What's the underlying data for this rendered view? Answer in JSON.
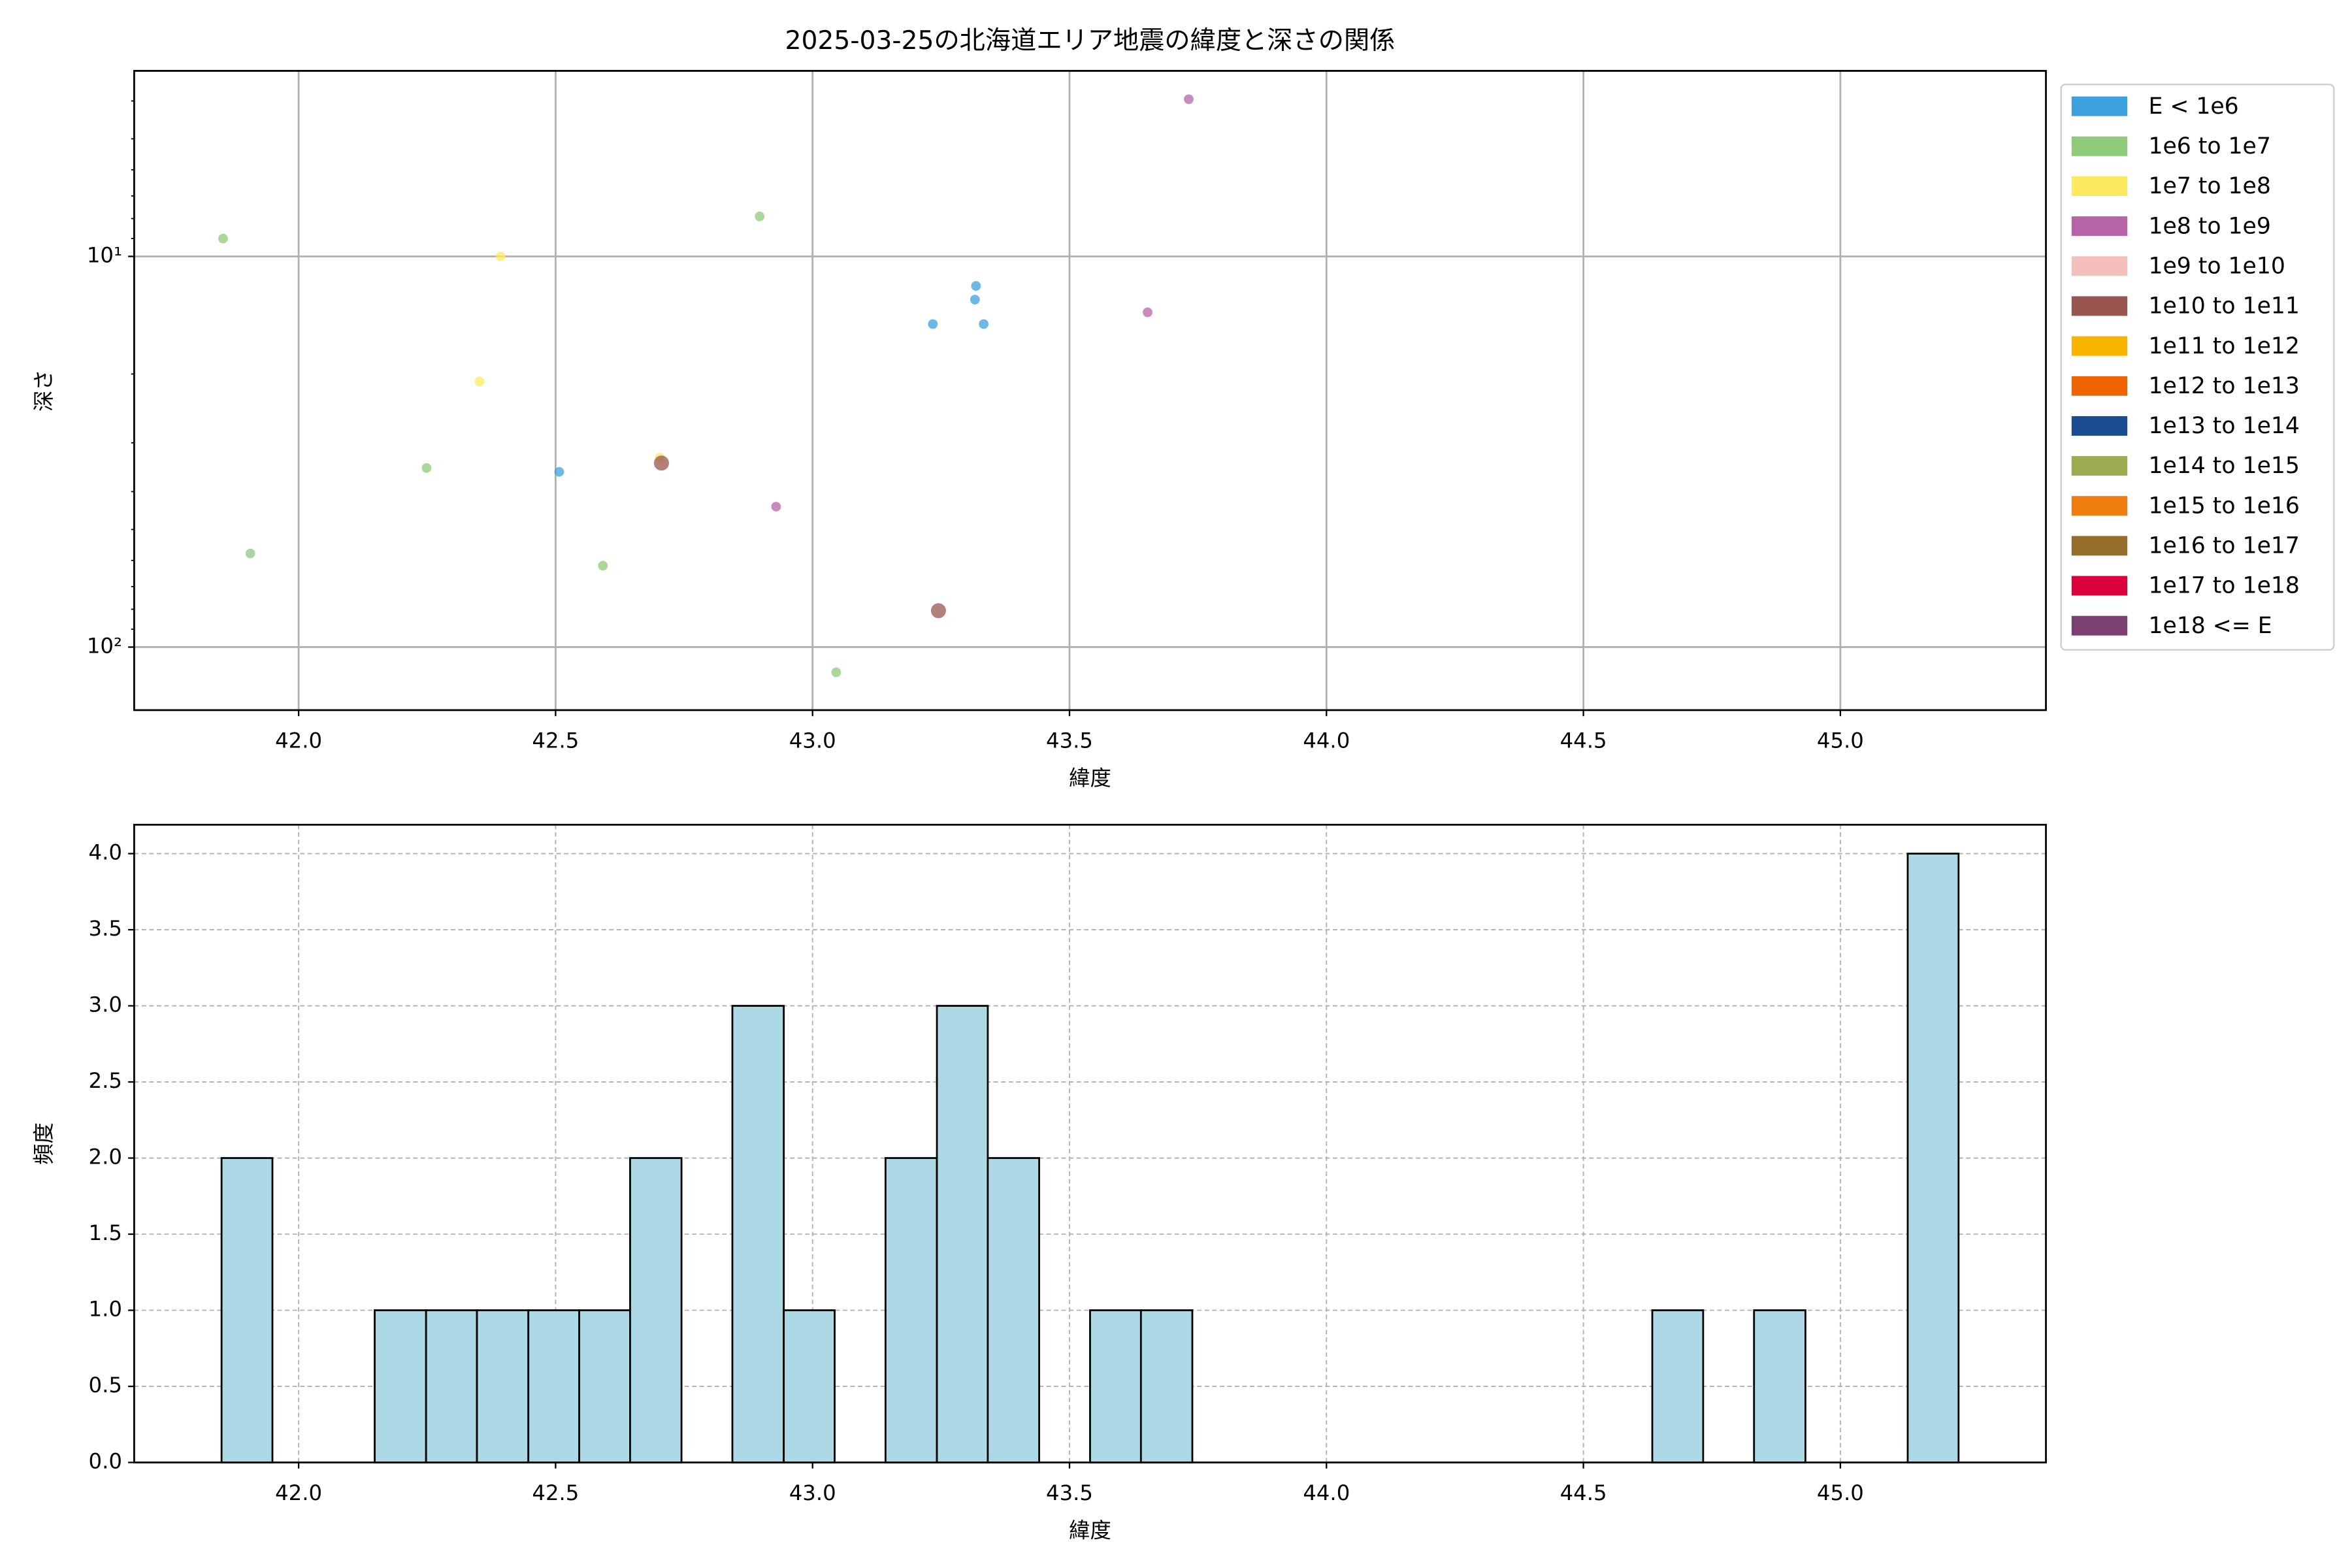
{
  "chart_data": [
    {
      "type": "scatter",
      "title": "2025-03-25の北海道エリア地震の緯度と深さの関係",
      "xlabel": "緯度",
      "ylabel": "深さ",
      "xlim": [
        41.68,
        45.4
      ],
      "xticks": [
        {
          "value": 42,
          "label": "42.0"
        },
        {
          "value": 42.5,
          "label": "42.5"
        },
        {
          "value": 43,
          "label": "43.0"
        },
        {
          "value": 43.5,
          "label": "43.5"
        },
        {
          "value": 44,
          "label": "44.0"
        },
        {
          "value": 44.5,
          "label": "44.5"
        },
        {
          "value": 45,
          "label": "45.0"
        }
      ],
      "ylim": [
        3.35,
        145
      ],
      "ylog": true,
      "yinvert": true,
      "yticks": [
        {
          "value": 10,
          "label": "10¹"
        },
        {
          "value": 100,
          "label": "10²"
        }
      ],
      "yminorticks": [
        4,
        5,
        6,
        7,
        8,
        9,
        20,
        30,
        40,
        50,
        60,
        70,
        80,
        90
      ],
      "grid": true,
      "legend": "outside right",
      "series": [
        {
          "name": "E < 1e6",
          "color": "#3ca0dc",
          "x": [
            42.507,
            43.234,
            43.318,
            43.316,
            43.333
          ],
          "values": [
            35.6,
            14.9,
            11.9,
            12.9,
            14.9
          ]
        },
        {
          "name": "1e6 to 1e7",
          "color": "#8fc97a",
          "x": [
            41.853,
            41.906,
            42.249,
            42.592,
            42.897,
            43.046
          ],
          "values": [
            9.0,
            57.6,
            34.8,
            61.9,
            7.9,
            116
          ]
        },
        {
          "name": "1e7 to 1e8",
          "color": "#fde95f",
          "x": [
            42.352,
            42.393,
            42.703
          ],
          "values": [
            20.9,
            10,
            32.7
          ]
        },
        {
          "name": "1e8 to 1e9",
          "color": "#b564a8",
          "x": [
            42.929,
            43.652,
            43.732
          ],
          "values": [
            43.7,
            13.9,
            3.96
          ]
        },
        {
          "name": "1e9 to 1e10",
          "color": "#f5c0bb",
          "x": [],
          "values": []
        },
        {
          "name": "1e10 to 1e11",
          "color": "#99554f",
          "x": [
            42.706,
            43.245
          ],
          "values": [
            33.8,
            80.7
          ],
          "large": true
        },
        {
          "name": "1e11 to 1e12",
          "color": "#f9b400",
          "x": [],
          "values": []
        },
        {
          "name": "1e12 to 1e13",
          "color": "#f06400",
          "x": [],
          "values": []
        },
        {
          "name": "1e13 to 1e14",
          "color": "#1b4b91",
          "x": [],
          "values": []
        },
        {
          "name": "1e14 to 1e15",
          "color": "#9aab50",
          "x": [],
          "values": []
        },
        {
          "name": "1e15 to 1e16",
          "color": "#ef7d0f",
          "x": [],
          "values": []
        },
        {
          "name": "1e16 to 1e17",
          "color": "#956c2a",
          "x": [],
          "values": []
        },
        {
          "name": "1e17 to 1e18",
          "color": "#dc003c",
          "x": [],
          "values": []
        },
        {
          "name": "1e18 <= E",
          "color": "#7b3f70",
          "x": [],
          "values": []
        }
      ]
    },
    {
      "type": "histogram",
      "xlabel": "緯度",
      "ylabel": "頻度",
      "color": "#add8e6",
      "xlim": [
        41.68,
        45.4
      ],
      "xticks": [
        {
          "value": 42,
          "label": "42.0"
        },
        {
          "value": 42.5,
          "label": "42.5"
        },
        {
          "value": 43,
          "label": "43.0"
        },
        {
          "value": 43.5,
          "label": "43.5"
        },
        {
          "value": 44,
          "label": "44.0"
        },
        {
          "value": 44.5,
          "label": "44.5"
        },
        {
          "value": 45,
          "label": "45.0"
        }
      ],
      "ylim": [
        0,
        4.19
      ],
      "yticks": [
        {
          "value": 0,
          "label": "0.0"
        },
        {
          "value": 0.5,
          "label": "0.5"
        },
        {
          "value": 1,
          "label": "1.0"
        },
        {
          "value": 1.5,
          "label": "1.5"
        },
        {
          "value": 2,
          "label": "2.0"
        },
        {
          "value": 2.5,
          "label": "2.5"
        },
        {
          "value": 3,
          "label": "3.0"
        },
        {
          "value": 3.5,
          "label": "3.5"
        },
        {
          "value": 4,
          "label": "4.0"
        }
      ],
      "grid": true,
      "bins": [
        41.85,
        41.949,
        42.049,
        42.148,
        42.248,
        42.347,
        42.447,
        42.546,
        42.645,
        42.745,
        42.844,
        42.944,
        43.043,
        43.142,
        43.242,
        43.341,
        43.441,
        43.54,
        43.639,
        43.739,
        43.838,
        43.938,
        44.037,
        44.136,
        44.236,
        44.335,
        44.435,
        44.534,
        44.634,
        44.733,
        44.832,
        44.932,
        45.031,
        45.131,
        45.23
      ],
      "values": [
        2,
        0,
        0,
        1,
        1,
        1,
        1,
        1,
        2,
        0,
        3,
        1,
        0,
        2,
        3,
        2,
        0,
        1,
        1,
        0,
        0,
        0,
        0,
        0,
        0,
        0,
        0,
        0,
        1,
        0,
        1,
        0,
        0,
        4
      ]
    }
  ]
}
